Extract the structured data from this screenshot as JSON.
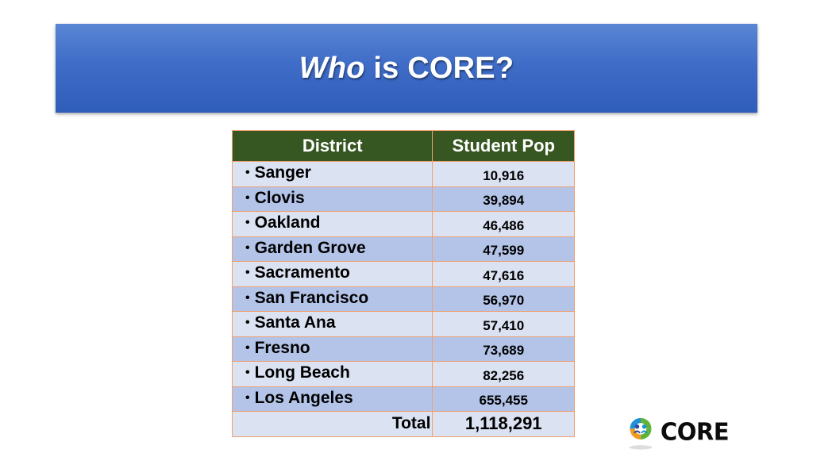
{
  "slide": {
    "title_em": "Who",
    "title_rest": " is CORE?"
  },
  "table": {
    "headers": [
      "District",
      "Student Pop"
    ],
    "rows": [
      {
        "district": "Sanger",
        "pop": "10,916"
      },
      {
        "district": "Clovis",
        "pop": "39,894"
      },
      {
        "district": "Oakland",
        "pop": "46,486"
      },
      {
        "district": "Garden Grove",
        "pop": "47,599"
      },
      {
        "district": "Sacramento",
        "pop": "47,616"
      },
      {
        "district": "San Francisco",
        "pop": "56,970"
      },
      {
        "district": "Santa Ana",
        "pop": "57,410"
      },
      {
        "district": "Fresno",
        "pop": "73,689"
      },
      {
        "district": "Long Beach",
        "pop": "82,256"
      },
      {
        "district": "Los Angeles",
        "pop": "655,455"
      }
    ],
    "total_label": "Total",
    "total_value": "1,118,291",
    "bullet": "•"
  },
  "logo": {
    "text": "CORE",
    "icon": "core-logo-icon",
    "colors": {
      "blue": "#1f8fd6",
      "green": "#5fb336",
      "orange": "#f39a1e",
      "navy": "#2c4a9a"
    }
  },
  "colors": {
    "banner_top": "#5a86d4",
    "banner_bottom": "#2f5dba",
    "header_green": "#375722",
    "row_light": "#dbe2f2",
    "row_dark": "#b4c4e8",
    "border": "#f0a070"
  }
}
